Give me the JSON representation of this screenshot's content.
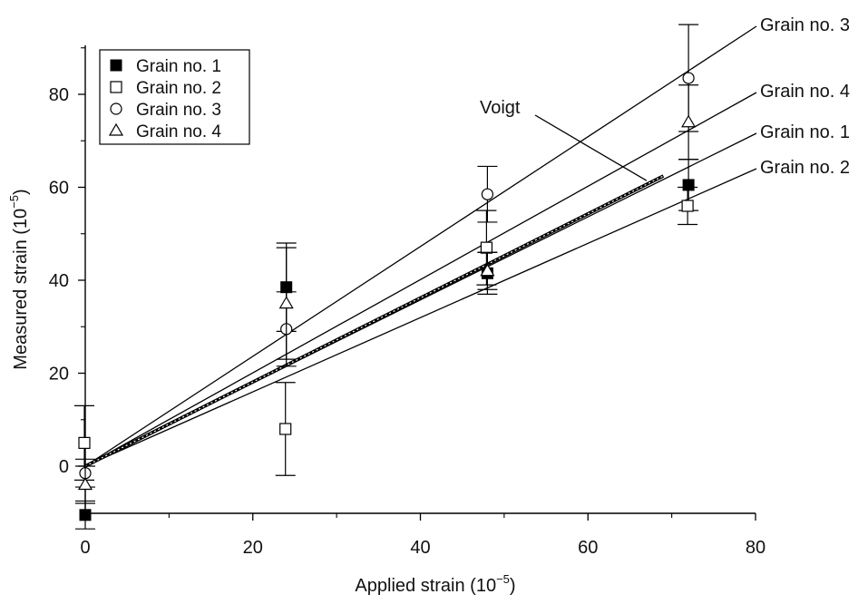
{
  "chart_data": {
    "type": "scatter",
    "title": "",
    "xlabel": "Applied strain (10",
    "xlabel_exp": "−5",
    "xlabel_end": ")",
    "ylabel": "Measured strain (10",
    "ylabel_exp": "−5",
    "ylabel_end": ")",
    "xlim": [
      0,
      80
    ],
    "ylim": [
      -12,
      92
    ],
    "x_ticks": [
      0,
      20,
      40,
      60,
      80
    ],
    "y_ticks": [
      0,
      20,
      40,
      60,
      80
    ],
    "grid": false,
    "legend_position": "top-left",
    "series": [
      {
        "name": "Grain no. 1",
        "marker": "filled-square",
        "x": [
          0,
          24,
          48,
          72
        ],
        "y": [
          -10.5,
          38.5,
          41.5,
          60.5
        ],
        "err": [
          3,
          9.5,
          4.5,
          5.5
        ],
        "fit_slope": 0.885
      },
      {
        "name": "Grain no. 2",
        "marker": "open-square",
        "x": [
          0,
          24,
          48,
          72
        ],
        "y": [
          5,
          8,
          47,
          56
        ],
        "err": [
          8,
          10,
          8,
          4
        ],
        "fit_slope": 0.795
      },
      {
        "name": "Grain no. 3",
        "marker": "open-circle",
        "x": [
          0,
          24,
          48,
          72
        ],
        "y": [
          -1.5,
          29.5,
          58.5,
          83.5
        ],
        "err": [
          3,
          8,
          6,
          11.5
        ],
        "fit_slope": 1.183
      },
      {
        "name": "Grain no. 4",
        "marker": "open-triangle",
        "x": [
          0,
          24,
          48,
          72
        ],
        "y": [
          -4,
          35,
          42,
          74
        ],
        "err": [
          4,
          12,
          4,
          8
        ],
        "fit_slope": 1.0
      }
    ],
    "voigt": {
      "name": "Voigt",
      "slope": 0.905,
      "x_end": 69
    },
    "line_labels": [
      "Grain no. 3",
      "Grain no. 4",
      "Grain no. 1",
      "Grain no. 2"
    ],
    "annotation": "Voigt"
  }
}
